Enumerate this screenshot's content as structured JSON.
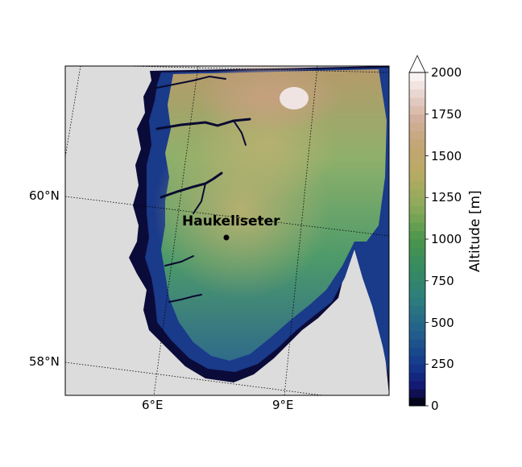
{
  "map": {
    "place_name": "Haukeliseter",
    "lat_labels": [
      "60°N",
      "58°N"
    ],
    "lon_labels": [
      "6°E",
      "9°E"
    ],
    "background_color": "#dcdcdc",
    "low_color": "#000000",
    "high_color": "#ffffff"
  },
  "colorbar": {
    "title": "Altitude [m]",
    "tick_labels": [
      "0",
      "250",
      "500",
      "750",
      "1000",
      "1250",
      "1500",
      "1750",
      "2000"
    ],
    "min": 0,
    "max": 2000,
    "extend": "max"
  }
}
